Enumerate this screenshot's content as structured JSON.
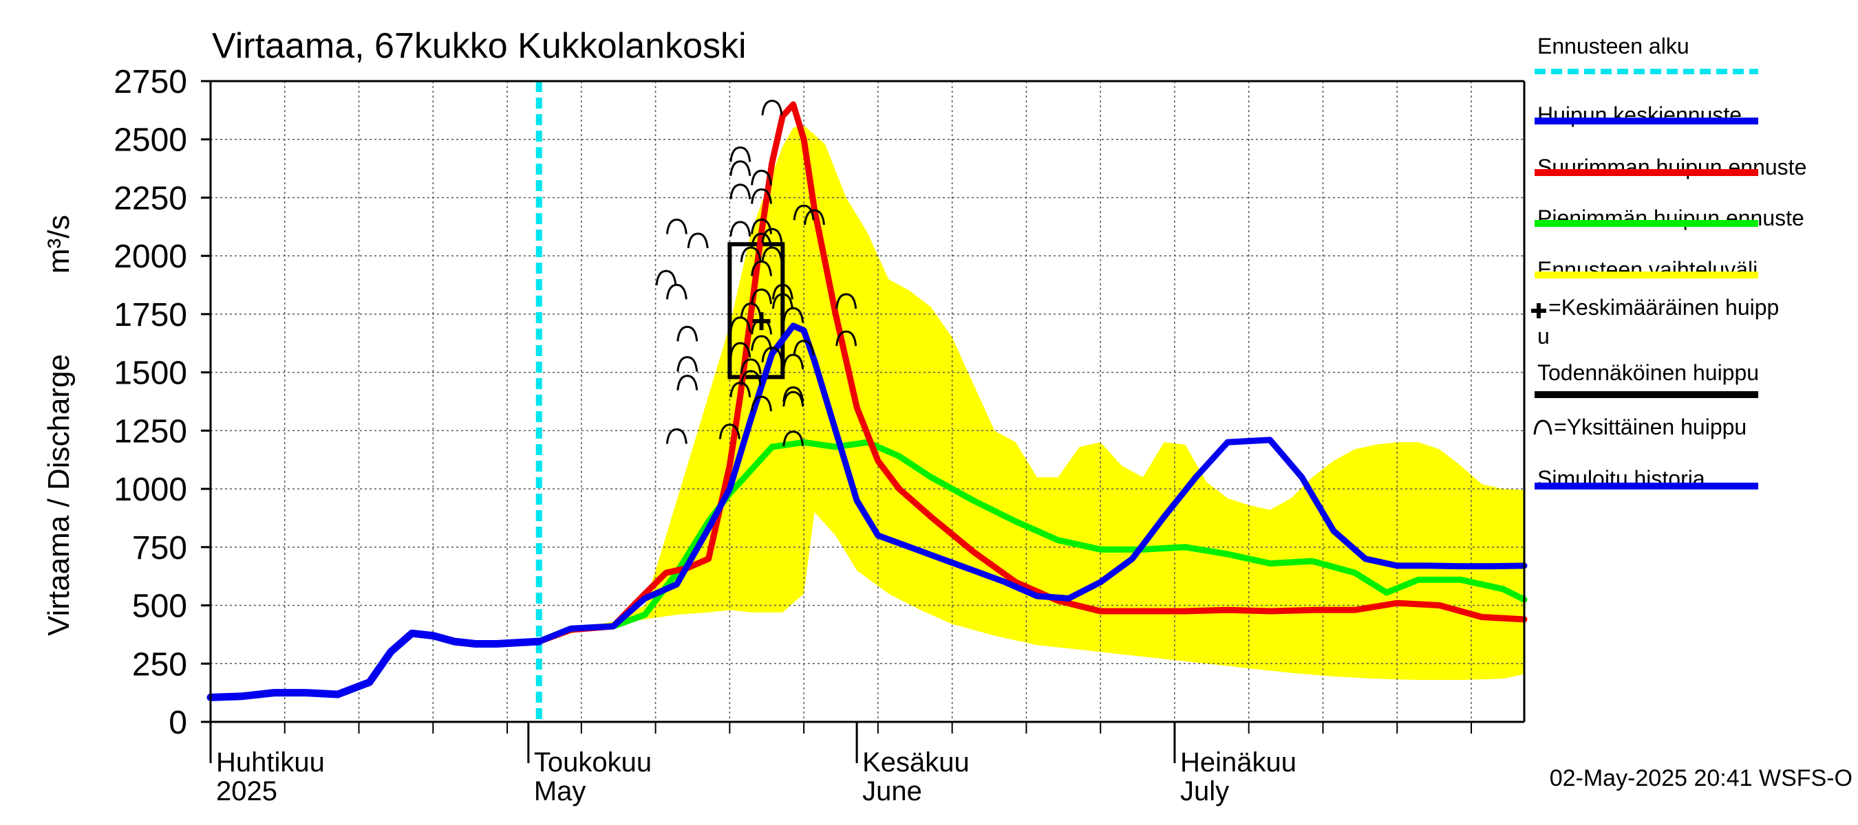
{
  "chart_data": {
    "type": "line",
    "title": "Virtaama, 67kukko Kukkolankoski",
    "ylabel_left": "Virtaama / Discharge",
    "ylabel_unit": "m³/s",
    "xlim": [
      "2025-04-01",
      "2025-08-03"
    ],
    "ylim": [
      0,
      2750
    ],
    "yticks": [
      0,
      250,
      500,
      750,
      1000,
      1250,
      1500,
      1750,
      2000,
      2250,
      2500,
      2750
    ],
    "grid": true,
    "month_labels": [
      {
        "date": "2025-04-01",
        "fi": "Huhtikuu",
        "en": "2025"
      },
      {
        "date": "2025-05-01",
        "fi": "Toukokuu",
        "en": "May"
      },
      {
        "date": "2025-06-01",
        "fi": "Kesäkuu",
        "en": "June"
      },
      {
        "date": "2025-07-01",
        "fi": "Heinäkuu",
        "en": "July"
      }
    ],
    "forecast_start": "2025-05-02",
    "legend_placement": "right",
    "legend": [
      {
        "label": "Ennusteen alku",
        "kind": "dashed",
        "color": "#00e5ee"
      },
      {
        "label": "Huipun keskiennuste",
        "kind": "line",
        "color": "#0000ee"
      },
      {
        "label": "Suurimman huipun ennuste",
        "kind": "line",
        "color": "#ee0000"
      },
      {
        "label": "Pienimmän huipun ennuste",
        "kind": "line",
        "color": "#00ee00"
      },
      {
        "label": "Ennusteen vaihteluväli",
        "kind": "line",
        "color": "#ffff00"
      },
      {
        "label": "=Keskimääräinen huipp",
        "label2": "u",
        "kind": "plus",
        "color": "#000000"
      },
      {
        "label": "Todennäköinen huippu",
        "kind": "line",
        "color": "#000000"
      },
      {
        "label": "=Yksittäinen huippu",
        "kind": "arc",
        "color": "#000000"
      },
      {
        "label": "Simuloitu historia",
        "kind": "line",
        "color": "#0000ee"
      }
    ],
    "series": [
      {
        "name": "Ennusteen vaihteluväli",
        "color": "#ffff00",
        "kind": "band",
        "x_upper": [
          "2025-05-02",
          "2025-05-05",
          "2025-05-09",
          "2025-05-12",
          "2025-05-14",
          "2025-05-16",
          "2025-05-18",
          "2025-05-20",
          "2025-05-22",
          "2025-05-24",
          "2025-05-25",
          "2025-05-26",
          "2025-05-27",
          "2025-05-29",
          "2025-05-31",
          "2025-06-02",
          "2025-06-04",
          "2025-06-06",
          "2025-06-08",
          "2025-06-10",
          "2025-06-12",
          "2025-06-14",
          "2025-06-16",
          "2025-06-18",
          "2025-06-20",
          "2025-06-22",
          "2025-06-24",
          "2025-06-26",
          "2025-06-28",
          "2025-06-30",
          "2025-07-02",
          "2025-07-04",
          "2025-07-06",
          "2025-07-08",
          "2025-07-10",
          "2025-07-12",
          "2025-07-14",
          "2025-07-16",
          "2025-07-18",
          "2025-07-20",
          "2025-07-22",
          "2025-07-24",
          "2025-07-26",
          "2025-07-28",
          "2025-07-30",
          "2025-08-01",
          "2025-08-03"
        ],
        "upper": [
          350,
          400,
          430,
          500,
          800,
          1100,
          1400,
          1700,
          2100,
          2350,
          2470,
          2550,
          2560,
          2480,
          2250,
          2100,
          1900,
          1850,
          1780,
          1650,
          1450,
          1250,
          1200,
          1050,
          1050,
          1180,
          1200,
          1100,
          1050,
          1200,
          1190,
          1030,
          960,
          930,
          910,
          960,
          1050,
          1120,
          1170,
          1190,
          1200,
          1200,
          1170,
          1100,
          1020,
          1000,
          995
        ],
        "x_lower": [
          "2025-05-02",
          "2025-05-05",
          "2025-05-09",
          "2025-05-12",
          "2025-05-15",
          "2025-05-18",
          "2025-05-20",
          "2025-05-22",
          "2025-05-25",
          "2025-05-27",
          "2025-05-28",
          "2025-05-30",
          "2025-06-01",
          "2025-06-04",
          "2025-06-07",
          "2025-06-10",
          "2025-06-14",
          "2025-06-18",
          "2025-06-22",
          "2025-06-26",
          "2025-06-30",
          "2025-07-04",
          "2025-07-08",
          "2025-07-12",
          "2025-07-16",
          "2025-07-20",
          "2025-07-24",
          "2025-07-28",
          "2025-08-01",
          "2025-08-03"
        ],
        "lower": [
          340,
          380,
          420,
          440,
          460,
          470,
          480,
          470,
          470,
          550,
          900,
          800,
          650,
          550,
          480,
          420,
          370,
          330,
          310,
          290,
          270,
          250,
          230,
          210,
          195,
          185,
          180,
          180,
          185,
          205
        ]
      },
      {
        "name": "Pienimmän huipun ennuste",
        "color": "#00ee00",
        "x": [
          "2025-05-02",
          "2025-05-05",
          "2025-05-09",
          "2025-05-12",
          "2025-05-15",
          "2025-05-18",
          "2025-05-20",
          "2025-05-22",
          "2025-05-24",
          "2025-05-27",
          "2025-05-30",
          "2025-06-02",
          "2025-06-05",
          "2025-06-08",
          "2025-06-12",
          "2025-06-16",
          "2025-06-20",
          "2025-06-24",
          "2025-06-28",
          "2025-07-02",
          "2025-07-06",
          "2025-07-10",
          "2025-07-14",
          "2025-07-18",
          "2025-07-21",
          "2025-07-24",
          "2025-07-28",
          "2025-08-01",
          "2025-08-03"
        ],
        "y": [
          345,
          400,
          410,
          460,
          640,
          860,
          980,
          1080,
          1180,
          1200,
          1180,
          1200,
          1140,
          1050,
          950,
          860,
          780,
          740,
          740,
          750,
          720,
          680,
          690,
          640,
          555,
          610,
          610,
          570,
          525
        ]
      },
      {
        "name": "Suurimman huipun ennuste",
        "color": "#ee0000",
        "x": [
          "2025-05-02",
          "2025-05-05",
          "2025-05-09",
          "2025-05-12",
          "2025-05-14",
          "2025-05-16",
          "2025-05-18",
          "2025-05-20",
          "2025-05-21",
          "2025-05-22",
          "2025-05-23",
          "2025-05-24",
          "2025-05-25",
          "2025-05-26",
          "2025-05-27",
          "2025-05-28",
          "2025-05-30",
          "2025-06-01",
          "2025-06-03",
          "2025-06-05",
          "2025-06-08",
          "2025-06-12",
          "2025-06-16",
          "2025-06-20",
          "2025-06-24",
          "2025-06-28",
          "2025-07-02",
          "2025-07-06",
          "2025-07-10",
          "2025-07-14",
          "2025-07-18",
          "2025-07-22",
          "2025-07-26",
          "2025-07-30",
          "2025-08-03"
        ],
        "y": [
          345,
          395,
          410,
          550,
          640,
          660,
          700,
          1100,
          1400,
          1750,
          2100,
          2400,
          2600,
          2650,
          2500,
          2200,
          1750,
          1350,
          1120,
          1000,
          880,
          730,
          600,
          520,
          475,
          475,
          475,
          480,
          475,
          480,
          480,
          510,
          500,
          450,
          440
        ]
      },
      {
        "name": "Huipun keskiennuste",
        "color": "#0000ee",
        "x": [
          "2025-05-02",
          "2025-05-05",
          "2025-05-09",
          "2025-05-12",
          "2025-05-15",
          "2025-05-18",
          "2025-05-20",
          "2025-05-22",
          "2025-05-24",
          "2025-05-26",
          "2025-05-27",
          "2025-05-28",
          "2025-05-30",
          "2025-06-01",
          "2025-06-03",
          "2025-06-06",
          "2025-06-09",
          "2025-06-12",
          "2025-06-15",
          "2025-06-18",
          "2025-06-21",
          "2025-06-24",
          "2025-06-27",
          "2025-06-30",
          "2025-07-03",
          "2025-07-06",
          "2025-07-10",
          "2025-07-13",
          "2025-07-16",
          "2025-07-19",
          "2025-07-22",
          "2025-07-25",
          "2025-07-28",
          "2025-07-31",
          "2025-08-03"
        ],
        "y": [
          345,
          400,
          410,
          530,
          590,
          830,
          1000,
          1300,
          1580,
          1700,
          1680,
          1550,
          1250,
          950,
          800,
          750,
          700,
          650,
          600,
          540,
          530,
          600,
          700,
          880,
          1050,
          1200,
          1210,
          1050,
          820,
          700,
          670,
          670,
          668,
          668,
          670
        ]
      },
      {
        "name": "Simuloitu historia",
        "color": "#0000ee",
        "x": [
          "2025-04-01",
          "2025-04-04",
          "2025-04-07",
          "2025-04-10",
          "2025-04-13",
          "2025-04-16",
          "2025-04-18",
          "2025-04-20",
          "2025-04-22",
          "2025-04-24",
          "2025-04-26",
          "2025-04-28",
          "2025-04-30",
          "2025-05-02"
        ],
        "y": [
          105,
          110,
          125,
          125,
          118,
          170,
          300,
          380,
          370,
          345,
          335,
          335,
          340,
          345
        ]
      }
    ],
    "peak_arcs": [
      {
        "x": "2025-05-15",
        "y": 1220
      },
      {
        "x": "2025-05-15",
        "y": 2120
      },
      {
        "x": "2025-05-14",
        "y": 1900
      },
      {
        "x": "2025-05-15",
        "y": 1840
      },
      {
        "x": "2025-05-16",
        "y": 1660
      },
      {
        "x": "2025-05-16",
        "y": 1530
      },
      {
        "x": "2025-05-16",
        "y": 1450
      },
      {
        "x": "2025-05-17",
        "y": 2060
      },
      {
        "x": "2025-05-20",
        "y": 1240
      },
      {
        "x": "2025-05-21",
        "y": 2430
      },
      {
        "x": "2025-05-21",
        "y": 2370
      },
      {
        "x": "2025-05-21",
        "y": 2270
      },
      {
        "x": "2025-05-21",
        "y": 2110
      },
      {
        "x": "2025-05-21",
        "y": 1700
      },
      {
        "x": "2025-05-21",
        "y": 1590
      },
      {
        "x": "2025-05-21",
        "y": 1420
      },
      {
        "x": "2025-05-22",
        "y": 2000
      },
      {
        "x": "2025-05-22",
        "y": 1760
      },
      {
        "x": "2025-05-22",
        "y": 1520
      },
      {
        "x": "2025-05-22",
        "y": 1470
      },
      {
        "x": "2025-05-23",
        "y": 2330
      },
      {
        "x": "2025-05-23",
        "y": 2250
      },
      {
        "x": "2025-05-23",
        "y": 2120
      },
      {
        "x": "2025-05-23",
        "y": 2060
      },
      {
        "x": "2025-05-23",
        "y": 1940
      },
      {
        "x": "2025-05-23",
        "y": 1820
      },
      {
        "x": "2025-05-23",
        "y": 1690
      },
      {
        "x": "2025-05-23",
        "y": 1620
      },
      {
        "x": "2025-05-23",
        "y": 1360
      },
      {
        "x": "2025-05-24",
        "y": 2630
      },
      {
        "x": "2025-05-24",
        "y": 2080
      },
      {
        "x": "2025-05-24",
        "y": 2000
      },
      {
        "x": "2025-05-24",
        "y": 1570
      },
      {
        "x": "2025-05-25",
        "y": 1840
      },
      {
        "x": "2025-05-25",
        "y": 1800
      },
      {
        "x": "2025-05-26",
        "y": 1740
      },
      {
        "x": "2025-05-26",
        "y": 1540
      },
      {
        "x": "2025-05-26",
        "y": 1400
      },
      {
        "x": "2025-05-26",
        "y": 1380
      },
      {
        "x": "2025-05-26",
        "y": 1210
      },
      {
        "x": "2025-05-27",
        "y": 1600
      },
      {
        "x": "2025-05-27",
        "y": 2180
      },
      {
        "x": "2025-05-28",
        "y": 2160
      },
      {
        "x": "2025-05-31",
        "y": 1800
      },
      {
        "x": "2025-05-31",
        "y": 1640
      }
    ],
    "likely_peak_box": {
      "x0": "2025-05-20",
      "x1": "2025-05-25",
      "y0": 1480,
      "y1": 2050
    },
    "mean_peak": {
      "x": "2025-05-23",
      "y": 1720
    }
  },
  "timestamp": "02-May-2025 20:41 WSFS-O"
}
